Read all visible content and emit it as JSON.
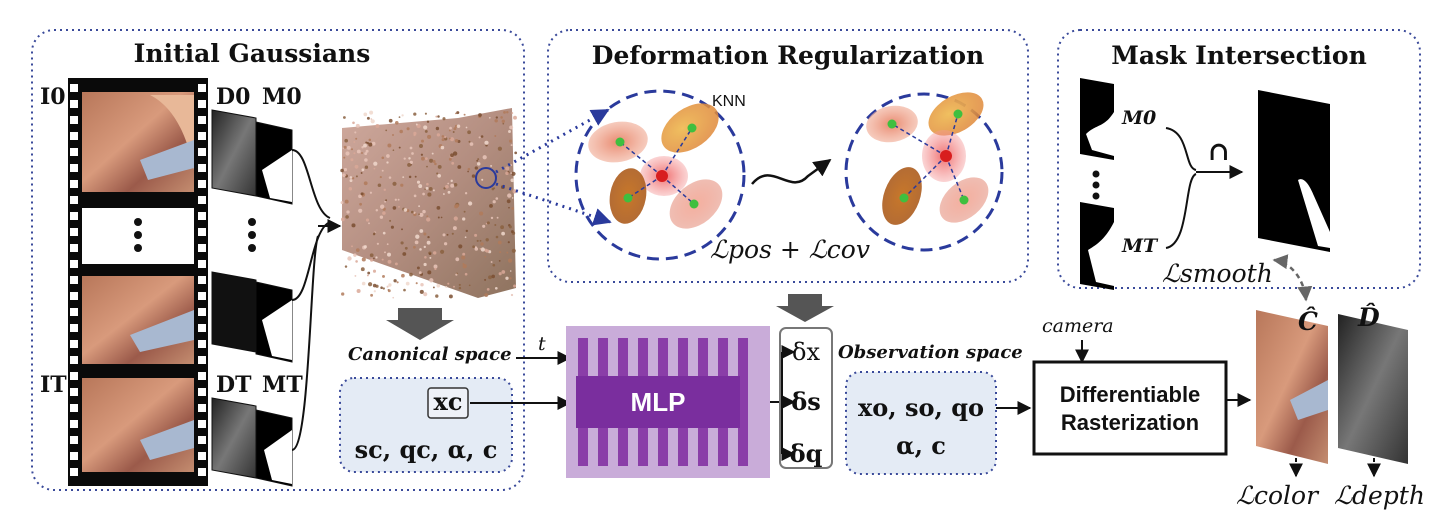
{
  "panels": {
    "initial_gaussians": {
      "title": "Initial Gaussians"
    },
    "deformation_regularization": {
      "title": "Deformation Regularization",
      "knn_label": "KNN",
      "loss": "ℒpos + ℒcov"
    },
    "mask_intersection": {
      "title": "Mask Intersection",
      "mask_first": "M0",
      "mask_last": "MT",
      "intersect_symbol": "∩",
      "loss": "ℒsmooth"
    }
  },
  "frames": {
    "image_first": "I0",
    "image_last": "IT",
    "depth_first": "D0",
    "depth_last": "DT",
    "mask_first": "M0",
    "mask_last": "MT"
  },
  "canonical": {
    "label": "Canonical space",
    "position": "xc",
    "attributes": "sc, qc, α, c"
  },
  "time_input": "t",
  "mlp": {
    "label": "MLP"
  },
  "deltas": [
    "δx",
    "δs",
    "δq"
  ],
  "observation": {
    "label": "Observation space",
    "line1": "xo, so, qo",
    "line2": "α, c"
  },
  "camera_label": "camera",
  "rasterizer": {
    "line1": "Differentiable",
    "line2": "Rasterization"
  },
  "outputs": {
    "color_symbol": "Ĉ",
    "depth_symbol": "D̂",
    "color_loss": "ℒcolor",
    "depth_loss": "ℒdepth"
  },
  "colors": {
    "panel_border": "#3a4a9a",
    "canonical_fill": "#e4ebf5",
    "mlp_outer": "#c9acd9",
    "mlp_inner": "#7a2e9e",
    "knn_circle": "#2a3a9c",
    "gaussian_center": "#d81e1e",
    "gaussian_neighbor": "#3fbf3f"
  }
}
